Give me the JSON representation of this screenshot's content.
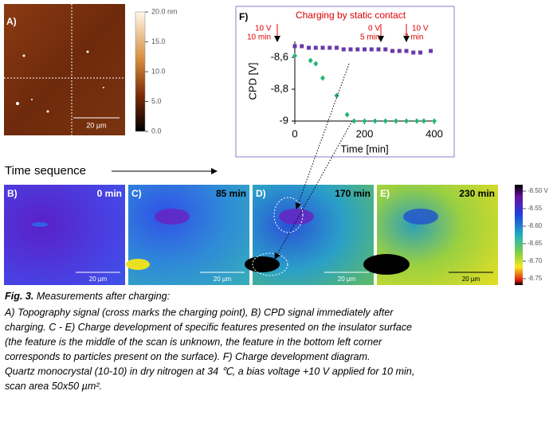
{
  "panel_a": {
    "label": "A)",
    "scale_bar": "20 µm",
    "colorbar_ticks": [
      "20.0 nm",
      "15.0",
      "10.0",
      "5.0",
      "0.0"
    ]
  },
  "sequence_label": "Time sequence",
  "panels": [
    {
      "label": "B)",
      "time": "0 min",
      "scale_bar": "20 µm"
    },
    {
      "label": "C)",
      "time": "85 min",
      "scale_bar": "20 µm"
    },
    {
      "label": "D)",
      "time": "170 min",
      "scale_bar": "20 µm"
    },
    {
      "label": "E)",
      "time": "230 min",
      "scale_bar": "20 µm"
    }
  ],
  "cpd_colorbar_ticks": [
    "-8.50 V",
    "-8.55",
    "-8.60",
    "-8.65",
    "-8.70",
    "-8.75"
  ],
  "chart_data": {
    "type": "scatter",
    "panel_label": "F)",
    "title": "Charging by static contact",
    "annotations": [
      "10 V",
      "10 min",
      "0 V",
      "5 min",
      "10 V",
      "7 min"
    ],
    "x_label": "Time [min]",
    "y_label": "CPD [V]",
    "xlim": [
      0,
      400
    ],
    "ylim": [
      -9,
      -8.5
    ],
    "xticks": [
      0,
      200,
      400
    ],
    "yticks": [
      {
        "value": -8.6,
        "label": "-8,6"
      },
      {
        "value": -8.8,
        "label": "-8,8"
      },
      -9
    ],
    "series": [
      {
        "color": "#6a3aa8",
        "marker": "square",
        "x": [
          0,
          20,
          40,
          60,
          80,
          100,
          120,
          140,
          160,
          180,
          200,
          220,
          240,
          260,
          280,
          300,
          320,
          340,
          360,
          390
        ],
        "values": [
          -8.53,
          -8.53,
          -8.54,
          -8.54,
          -8.54,
          -8.54,
          -8.54,
          -8.55,
          -8.55,
          -8.55,
          -8.55,
          -8.55,
          -8.55,
          -8.55,
          -8.56,
          -8.56,
          -8.56,
          -8.57,
          -8.57,
          -8.56
        ]
      },
      {
        "color": "#22b573",
        "marker": "diamond",
        "x": [
          0,
          45,
          60,
          80,
          120,
          150,
          170,
          200,
          230,
          260,
          290,
          320,
          350,
          370,
          400
        ],
        "values": [
          -8.59,
          -8.62,
          -8.64,
          -8.73,
          -8.84,
          -8.96,
          -9,
          -9,
          -9,
          -9,
          -9,
          -9,
          -9,
          -9,
          -9
        ]
      }
    ]
  },
  "caption": {
    "heading": "Fig. 3.",
    "subheading": "Measurements after charging:",
    "lines": [
      "A) Topography signal (cross marks the charging point), B) CPD signal immediately after",
      "charging. C - E) Charge development of specific features presented on the insulator surface",
      "(the feature is the middle of the scan is unknown, the feature in the bottom left corner",
      "corresponds to particles present on the surface). F) Charge development diagram.",
      "Quartz monocrystal (10-10) in dry nitrogen at 34 ℃, a bias voltage +10 V applied for 10 min,",
      "scan area 50x50 µm²."
    ]
  }
}
